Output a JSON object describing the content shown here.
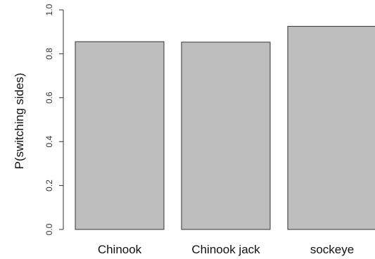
{
  "chart_data": {
    "type": "bar",
    "title": "",
    "xlabel": "",
    "ylabel": "P(switching sides)",
    "categories": [
      "Chinook",
      "Chinook jack",
      "sockeye"
    ],
    "values": [
      0.855,
      0.853,
      0.925
    ],
    "ylim": [
      0,
      1
    ],
    "yticks": [
      "0.0",
      "0.2",
      "0.4",
      "0.6",
      "0.8",
      "1.0"
    ],
    "grid": false,
    "legend": "none",
    "bar_color": "#bebebe",
    "border_color": "#333333"
  }
}
